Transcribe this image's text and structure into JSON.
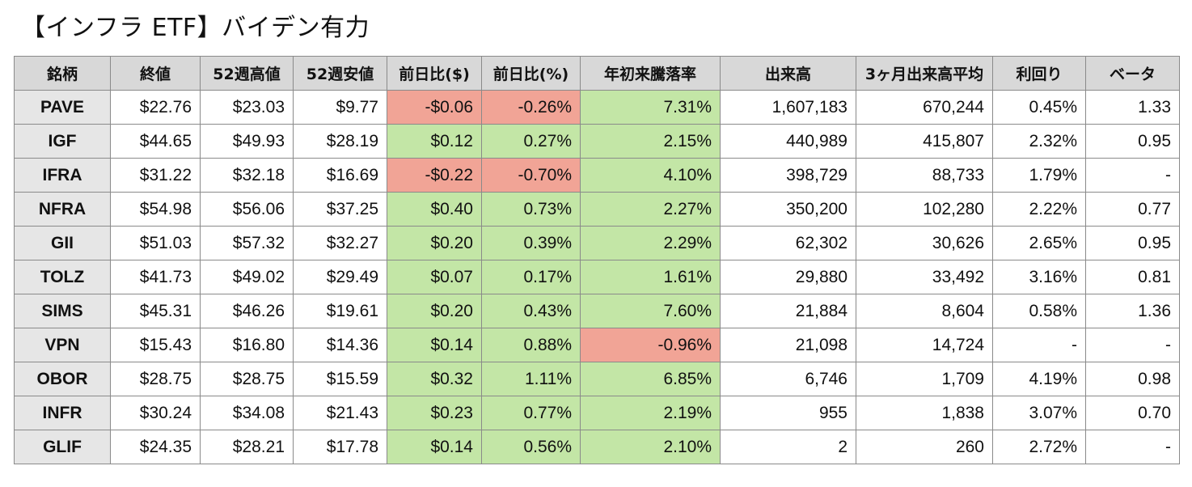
{
  "title": "【インフラ ETF】バイデン有力",
  "colors": {
    "positive_fill": "#c3e6a6",
    "negative_fill": "#f1a496",
    "header_fill": "#d8d8d8",
    "ticker_fill": "#e6e6e6"
  },
  "table": {
    "columns": [
      "銘柄",
      "終値",
      "52週高値",
      "52週安値",
      "前日比($)",
      "前日比(%)",
      "年初来騰落率",
      "出来高",
      "3ヶ月出来高平均",
      "利回り",
      "ベータ"
    ],
    "rows": [
      [
        "PAVE",
        "$22.76",
        "$23.03",
        "$9.77",
        "-$0.06",
        "-0.26%",
        "7.31%",
        "1,607,183",
        "670,244",
        "0.45%",
        "1.33"
      ],
      [
        "IGF",
        "$44.65",
        "$49.93",
        "$28.19",
        "$0.12",
        "0.27%",
        "2.15%",
        "440,989",
        "415,807",
        "2.32%",
        "0.95"
      ],
      [
        "IFRA",
        "$31.22",
        "$32.18",
        "$16.69",
        "-$0.22",
        "-0.70%",
        "4.10%",
        "398,729",
        "88,733",
        "1.79%",
        "-"
      ],
      [
        "NFRA",
        "$54.98",
        "$56.06",
        "$37.25",
        "$0.40",
        "0.73%",
        "2.27%",
        "350,200",
        "102,280",
        "2.22%",
        "0.77"
      ],
      [
        "GII",
        "$51.03",
        "$57.32",
        "$32.27",
        "$0.20",
        "0.39%",
        "2.29%",
        "62,302",
        "30,626",
        "2.65%",
        "0.95"
      ],
      [
        "TOLZ",
        "$41.73",
        "$49.02",
        "$29.49",
        "$0.07",
        "0.17%",
        "1.61%",
        "29,880",
        "33,492",
        "3.16%",
        "0.81"
      ],
      [
        "SIMS",
        "$45.31",
        "$46.26",
        "$19.61",
        "$0.20",
        "0.43%",
        "7.60%",
        "21,884",
        "8,604",
        "0.58%",
        "1.36"
      ],
      [
        "VPN",
        "$15.43",
        "$16.80",
        "$14.36",
        "$0.14",
        "0.88%",
        "-0.96%",
        "21,098",
        "14,724",
        "-",
        "-"
      ],
      [
        "OBOR",
        "$28.75",
        "$28.75",
        "$15.59",
        "$0.32",
        "1.11%",
        "6.85%",
        "6,746",
        "1,709",
        "4.19%",
        "0.98"
      ],
      [
        "INFR",
        "$30.24",
        "$34.08",
        "$21.43",
        "$0.23",
        "0.77%",
        "2.19%",
        "955",
        "1,838",
        "3.07%",
        "0.70"
      ],
      [
        "GLIF",
        "$24.35",
        "$28.21",
        "$17.78",
        "$0.14",
        "0.56%",
        "2.10%",
        "2",
        "260",
        "2.72%",
        "-"
      ]
    ]
  }
}
